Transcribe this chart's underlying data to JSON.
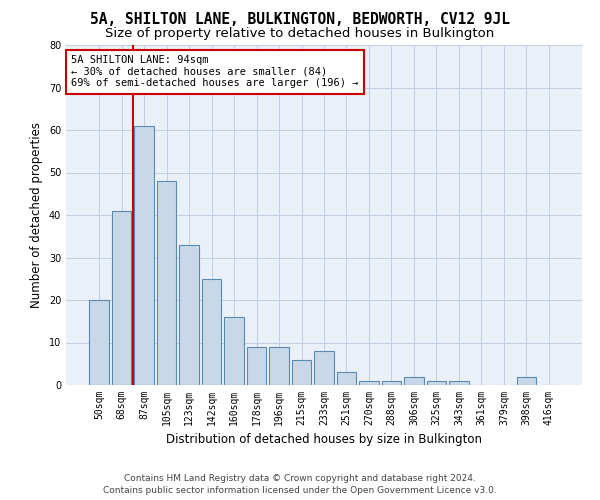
{
  "title1": "5A, SHILTON LANE, BULKINGTON, BEDWORTH, CV12 9JL",
  "title2": "Size of property relative to detached houses in Bulkington",
  "xlabel": "Distribution of detached houses by size in Bulkington",
  "ylabel": "Number of detached properties",
  "footer1": "Contains HM Land Registry data © Crown copyright and database right 2024.",
  "footer2": "Contains public sector information licensed under the Open Government Licence v3.0.",
  "bar_labels": [
    "50sqm",
    "68sqm",
    "87sqm",
    "105sqm",
    "123sqm",
    "142sqm",
    "160sqm",
    "178sqm",
    "196sqm",
    "215sqm",
    "233sqm",
    "251sqm",
    "270sqm",
    "288sqm",
    "306sqm",
    "325sqm",
    "343sqm",
    "361sqm",
    "379sqm",
    "398sqm",
    "416sqm"
  ],
  "bar_values": [
    20,
    41,
    61,
    48,
    33,
    25,
    16,
    9,
    9,
    6,
    8,
    3,
    1,
    1,
    2,
    1,
    1,
    0,
    0,
    2,
    0
  ],
  "bar_color": "#c8d8e8",
  "bar_edge_color": "#5a8ab0",
  "annotation_line1": "5A SHILTON LANE: 94sqm",
  "annotation_line2": "← 30% of detached houses are smaller (84)",
  "annotation_line3": "69% of semi-detached houses are larger (196) →",
  "vline_color": "#cc0000",
  "annotation_box_color": "#ffffff",
  "annotation_box_edge": "#cc0000",
  "ylim": [
    0,
    80
  ],
  "yticks": [
    0,
    10,
    20,
    30,
    40,
    50,
    60,
    70,
    80
  ],
  "grid_color": "#c0cce0",
  "bg_color": "#eaf0f8",
  "title1_fontsize": 10.5,
  "title2_fontsize": 9.5,
  "axis_label_fontsize": 8.5,
  "tick_fontsize": 7,
  "footer_fontsize": 6.5,
  "ann_fontsize": 7.5
}
